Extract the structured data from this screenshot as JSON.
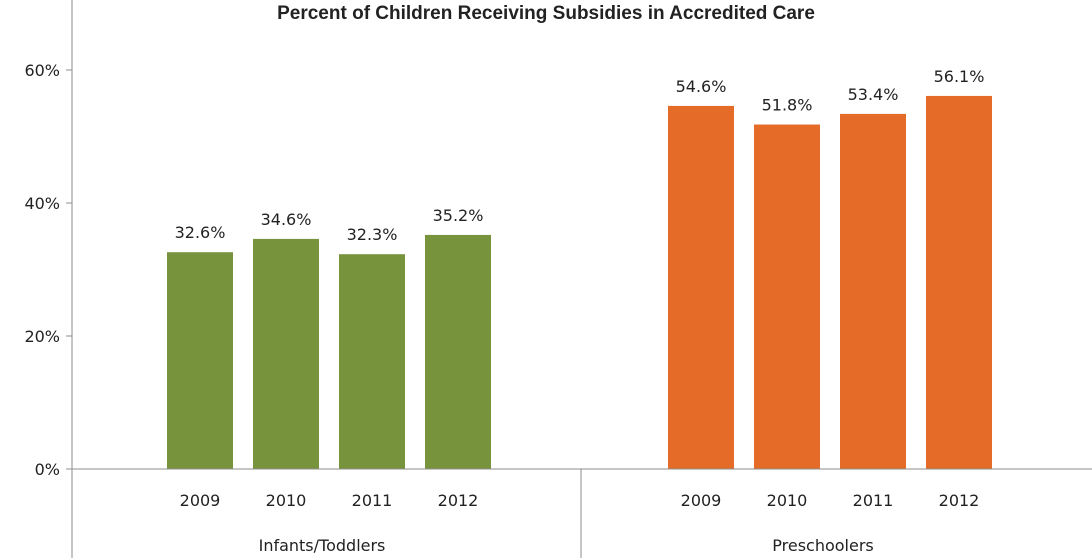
{
  "chart_data": {
    "type": "bar",
    "title": "Percent of Children Receiving Subsidies in Accredited Care",
    "xlabel": "",
    "ylabel": "",
    "ylim": [
      0,
      60
    ],
    "y_ticks": [
      0,
      20,
      40,
      60
    ],
    "y_tick_labels": [
      "0%",
      "20%",
      "40%",
      "60%"
    ],
    "grid": false,
    "legend": "none",
    "groups": [
      {
        "name": "Infants/Toddlers",
        "color": "#77933c",
        "categories": [
          "2009",
          "2010",
          "2011",
          "2012"
        ],
        "values": [
          32.6,
          34.6,
          32.3,
          35.2
        ],
        "data_labels": [
          "32.6%",
          "34.6%",
          "32.3%",
          "35.2%"
        ]
      },
      {
        "name": "Preschoolers",
        "color": "#e46c28",
        "categories": [
          "2009",
          "2010",
          "2011",
          "2012"
        ],
        "values": [
          54.6,
          51.8,
          53.4,
          56.1
        ],
        "data_labels": [
          "54.6%",
          "51.8%",
          "53.4%",
          "56.1%"
        ]
      }
    ]
  }
}
